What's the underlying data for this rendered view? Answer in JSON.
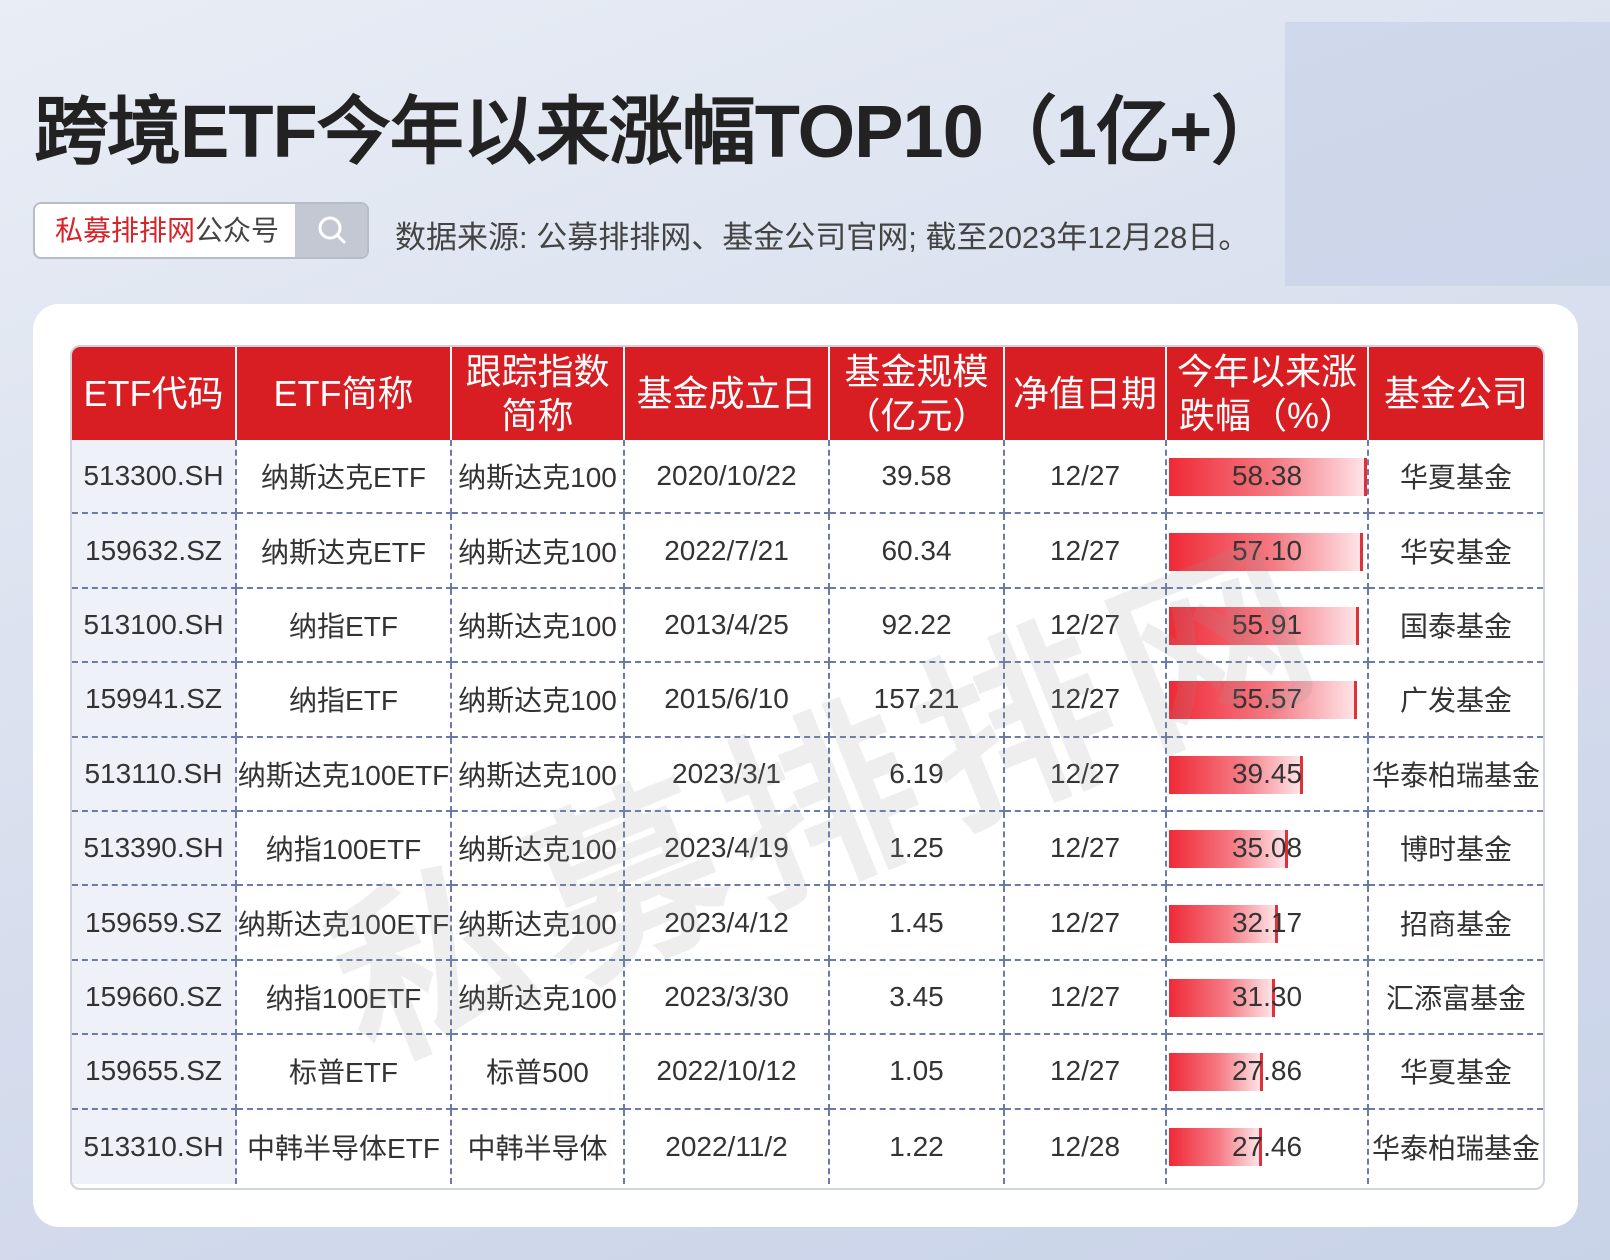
{
  "header": {
    "title": "跨境ETF今年以来涨幅TOP10（1亿+）",
    "brand": "私募排排网",
    "account": "公众号",
    "source": "数据来源: 公募排排网、基金公司官网; 截至2023年12月28日。"
  },
  "watermark": "私募排排网",
  "table": {
    "columns": [
      "ETF代码",
      "ETF简称",
      "跟踪指数简称",
      "基金成立日",
      "基金规模（亿元）",
      "净值日期",
      "今年以来涨跌幅（%）",
      "基金公司"
    ],
    "rows": [
      [
        "513300.SH",
        "纳斯达克ETF",
        "纳斯达克100",
        "2020/10/22",
        "39.58",
        "12/27",
        "58.38",
        "华夏基金"
      ],
      [
        "159632.SZ",
        "纳斯达克ETF",
        "纳斯达克100",
        "2022/7/21",
        "60.34",
        "12/27",
        "57.10",
        "华安基金"
      ],
      [
        "513100.SH",
        "纳指ETF",
        "纳斯达克100",
        "2013/4/25",
        "92.22",
        "12/27",
        "55.91",
        "国泰基金"
      ],
      [
        "159941.SZ",
        "纳指ETF",
        "纳斯达克100",
        "2015/6/10",
        "157.21",
        "12/27",
        "55.57",
        "广发基金"
      ],
      [
        "513110.SH",
        "纳斯达克100ETF",
        "纳斯达克100",
        "2023/3/1",
        "6.19",
        "12/27",
        "39.45",
        "华泰柏瑞基金"
      ],
      [
        "513390.SH",
        "纳指100ETF",
        "纳斯达克100",
        "2023/4/19",
        "1.25",
        "12/27",
        "35.08",
        "博时基金"
      ],
      [
        "159659.SZ",
        "纳斯达克100ETF",
        "纳斯达克100",
        "2023/4/12",
        "1.45",
        "12/27",
        "32.17",
        "招商基金"
      ],
      [
        "159660.SZ",
        "纳指100ETF",
        "纳斯达克100",
        "2023/3/30",
        "3.45",
        "12/27",
        "31.30",
        "汇添富基金"
      ],
      [
        "159655.SZ",
        "标普ETF",
        "标普500",
        "2022/10/12",
        "1.05",
        "12/27",
        "27.86",
        "华夏基金"
      ],
      [
        "513310.SH",
        "中韩半导体ETF",
        "中韩半导体",
        "2022/11/2",
        "1.22",
        "12/28",
        "27.46",
        "华泰柏瑞基金"
      ]
    ]
  }
}
